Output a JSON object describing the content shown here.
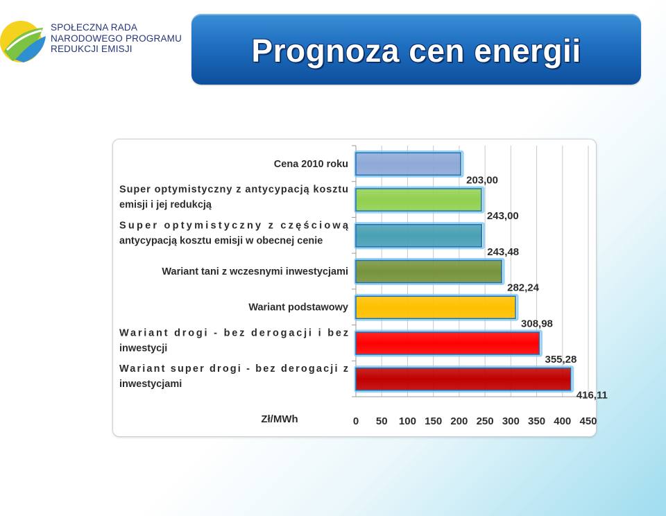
{
  "logo": {
    "line1": "SPOŁECZNA RADA",
    "line2": "NARODOWEGO PROGRAMU",
    "line3": "REDUKCJI EMISJI",
    "colors": [
      "#f5d21e",
      "#7cc243",
      "#2f8fd3"
    ]
  },
  "header": {
    "title": "Prognoza cen energii"
  },
  "chart_data": {
    "type": "bar",
    "orientation": "horizontal",
    "xlabel": "Zł/MWh",
    "xlim": [
      0,
      450
    ],
    "xticks": [
      "0",
      "50",
      "100",
      "150",
      "200",
      "250",
      "300",
      "350",
      "400",
      "450"
    ],
    "grid": true,
    "categories": [
      "Cena 2010 roku",
      "Super optymistyczny z antycypacją kosztu emisji i jej redukcją",
      "Super optymistyczny z częściową antycypacją kosztu emisji w obecnej cenie",
      "Wariant tani z wczesnymi inwestycjami",
      "Wariant podstawowy",
      "Wariant drogi - bez derogacji i bez inwestycji",
      "Wariant super drogi - bez derogacji z inwestycjami"
    ],
    "category_lines": [
      [
        "Cena 2010 roku"
      ],
      [
        "Super optymistyczny z antycypacją kosztu",
        "emisji i jej redukcją"
      ],
      [
        "Super optymistyczny z częściową",
        "antycypacją kosztu emisji w obecnej cenie"
      ],
      [
        "Wariant tani z wczesnymi inwestycjami"
      ],
      [
        "Wariant podstawowy"
      ],
      [
        "Wariant drogi - bez derogacji i bez",
        "inwestycji"
      ],
      [
        "Wariant super drogi - bez derogacji z",
        "inwestycjami"
      ]
    ],
    "values": [
      203.0,
      243.0,
      243.48,
      282.24,
      308.98,
      355.28,
      416.11
    ],
    "value_labels": [
      "203,00",
      "243,00",
      "243,48",
      "282,24",
      "308,98",
      "355,28",
      "416,11"
    ],
    "colors": [
      "#8ea9d8",
      "#92d050",
      "#4aa0b5",
      "#77933c",
      "#ffc000",
      "#ff0000",
      "#c00000"
    ]
  }
}
